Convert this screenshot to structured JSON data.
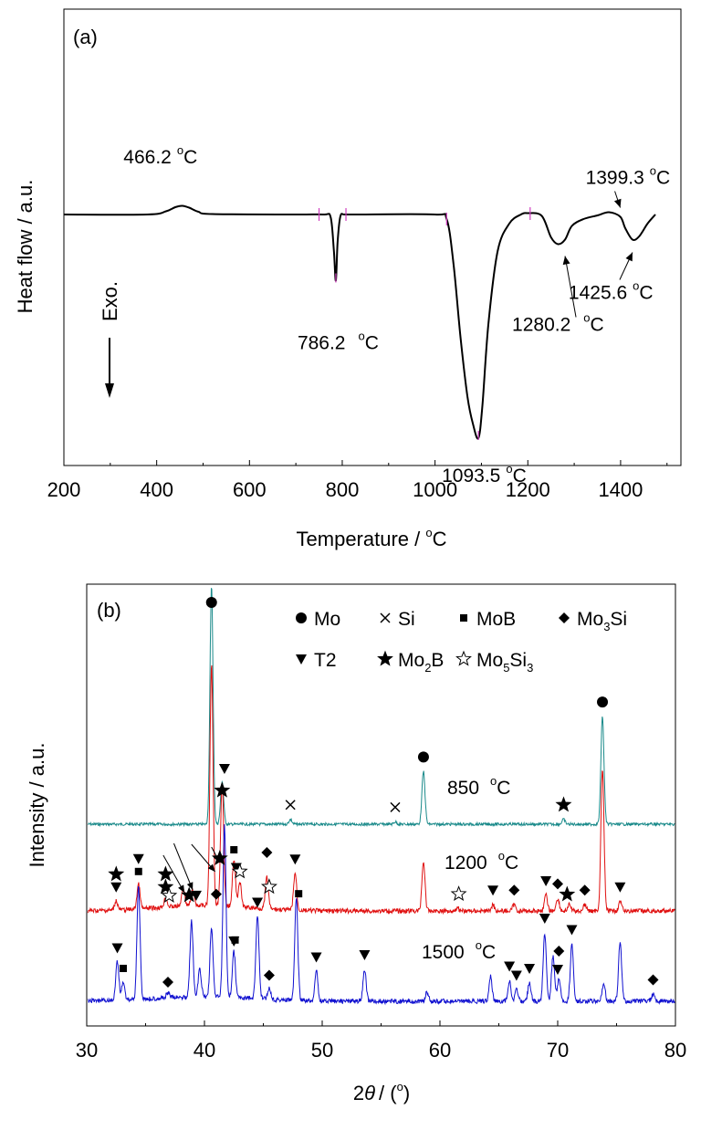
{
  "chart_data": [
    {
      "type": "line",
      "panel_label": "(a)",
      "xlabel": "Temperature / ",
      "xlabel_unit": "C",
      "ylabel": "Heat flow / a.u.",
      "xlim": [
        200,
        1530
      ],
      "ylim": [
        0,
        1
      ],
      "xticks": [
        200,
        400,
        600,
        800,
        1000,
        1200,
        1400
      ],
      "y_ticks_shown": false,
      "exo_label": "Exo.",
      "series": [
        {
          "x": [
            200,
            380,
            420,
            440,
            455,
            470,
            490,
            520,
            700,
            760,
            775,
            782,
            786.2,
            790,
            796,
            805,
            830,
            1000,
            1025,
            1040,
            1055,
            1070,
            1082,
            1093.5,
            1102,
            1115,
            1135,
            1160,
            1185,
            1200,
            1230,
            1250,
            1265,
            1280.2,
            1295,
            1320,
            1350,
            1375,
            1399.3,
            1410,
            1425.6,
            1440,
            1458,
            1475
          ],
          "y": [
            0.55,
            0.55,
            0.557,
            0.566,
            0.569,
            0.565,
            0.556,
            0.551,
            0.55,
            0.55,
            0.544,
            0.47,
            0.405,
            0.49,
            0.546,
            0.55,
            0.55,
            0.55,
            0.54,
            0.44,
            0.28,
            0.15,
            0.09,
            0.06,
            0.13,
            0.31,
            0.47,
            0.53,
            0.55,
            0.553,
            0.547,
            0.5,
            0.485,
            0.495,
            0.525,
            0.54,
            0.548,
            0.555,
            0.545,
            0.52,
            0.495,
            0.502,
            0.53,
            0.55
          ]
        }
      ],
      "annotations": [
        {
          "label": "466.2",
          "unit": "C",
          "x": 466.2
        },
        {
          "label": "786.2",
          "unit": "C",
          "x": 786.2
        },
        {
          "label": "1093.5",
          "unit": "C",
          "x": 1093.5
        },
        {
          "label": "1280.2",
          "unit": "C",
          "x": 1280.2
        },
        {
          "label": "1399.3",
          "unit": "C",
          "x": 1399.3
        },
        {
          "label": "1425.6",
          "unit": "C",
          "x": 1425.6
        }
      ],
      "onset_markers_x": [
        750,
        808,
        1025,
        1205
      ]
    },
    {
      "type": "line",
      "panel_label": "(b)",
      "xlabel": "2",
      "xlabel_theta": "θ",
      "xlabel_unit": "/ (",
      "xlabel_close": ")",
      "ylabel": "Intensity / a.u.",
      "xlim": [
        30,
        80
      ],
      "xticks": [
        30,
        40,
        50,
        60,
        70,
        80
      ],
      "y_ticks_shown": false,
      "legend": [
        {
          "symbol": "circle",
          "label": "Mo"
        },
        {
          "symbol": "cross",
          "label": "Si"
        },
        {
          "symbol": "square",
          "label": "MoB"
        },
        {
          "symbol": "diamond",
          "label": "Mo",
          "sub": "3",
          "tail": "Si"
        },
        {
          "symbol": "triangle-down",
          "label": "T2"
        },
        {
          "symbol": "star",
          "label": "Mo",
          "sub": "2",
          "tail": "B"
        },
        {
          "symbol": "star-open",
          "label": "Mo",
          "sub": "5",
          "tail": "Si",
          "sub2": "3"
        }
      ],
      "legend_position": "top-right",
      "series": [
        {
          "name": "850",
          "unit": "C",
          "color": "#1a8a8a",
          "peaks": [
            [
              40.6,
              1.0
            ],
            [
              41.5,
              0.18
            ],
            [
              47.3,
              0.02
            ],
            [
              56.2,
              0.01
            ],
            [
              58.6,
              0.22
            ],
            [
              70.5,
              0.02
            ],
            [
              73.8,
              0.45
            ]
          ]
        },
        {
          "name": "1200",
          "unit": "C",
          "color": "#e01010",
          "peaks": [
            [
              32.5,
              0.03
            ],
            [
              34.4,
              0.08
            ],
            [
              36.7,
              0.03
            ],
            [
              38.2,
              0.06
            ],
            [
              39.0,
              0.05
            ],
            [
              40.6,
              0.78
            ],
            [
              41.5,
              0.4
            ],
            [
              42.5,
              0.15
            ],
            [
              43.0,
              0.08
            ],
            [
              45.3,
              0.1
            ],
            [
              47.7,
              0.12
            ],
            [
              58.6,
              0.16
            ],
            [
              61.5,
              0.01
            ],
            [
              64.5,
              0.02
            ],
            [
              66.3,
              0.02
            ],
            [
              69.0,
              0.05
            ],
            [
              70.0,
              0.04
            ],
            [
              71.0,
              0.02
            ],
            [
              72.3,
              0.02
            ],
            [
              73.8,
              0.46
            ],
            [
              75.3,
              0.03
            ]
          ]
        },
        {
          "name": "1500",
          "unit": "C",
          "color": "#1010d0",
          "peaks": [
            [
              32.6,
              0.17
            ],
            [
              33.1,
              0.08
            ],
            [
              34.4,
              0.5
            ],
            [
              36.9,
              0.02
            ],
            [
              38.9,
              0.33
            ],
            [
              39.6,
              0.12
            ],
            [
              40.6,
              0.3
            ],
            [
              41.7,
              0.75
            ],
            [
              42.5,
              0.2
            ],
            [
              44.5,
              0.37
            ],
            [
              45.5,
              0.05
            ],
            [
              47.8,
              0.45
            ],
            [
              49.5,
              0.13
            ],
            [
              53.6,
              0.14
            ],
            [
              58.9,
              0.04
            ],
            [
              64.3,
              0.11
            ],
            [
              65.9,
              0.09
            ],
            [
              66.5,
              0.05
            ],
            [
              67.6,
              0.08
            ],
            [
              68.9,
              0.3
            ],
            [
              69.6,
              0.2
            ],
            [
              70.1,
              0.1
            ],
            [
              71.2,
              0.25
            ],
            [
              73.9,
              0.08
            ],
            [
              75.3,
              0.26
            ],
            [
              78.1,
              0.03
            ]
          ]
        }
      ],
      "markers": [
        {
          "series": "850",
          "symbol": "circle",
          "x": [
            40.6,
            58.6,
            73.8
          ]
        },
        {
          "series": "850",
          "symbol": "triangle-down",
          "x": [
            41.7
          ]
        },
        {
          "series": "850",
          "symbol": "star",
          "x": [
            41.5,
            70.5
          ]
        },
        {
          "series": "850",
          "symbol": "cross",
          "x": [
            47.3,
            56.2
          ]
        },
        {
          "series": "1200",
          "symbol": "square",
          "x": [
            34.4,
            42.5,
            48.0
          ]
        },
        {
          "series": "1200",
          "symbol": "triangle-down",
          "x": [
            32.5,
            34.4,
            39.3,
            42.7,
            47.7,
            64.5,
            69.0,
            75.3
          ]
        },
        {
          "series": "1200",
          "symbol": "star",
          "x": [
            32.5,
            36.7,
            36.7,
            38.7,
            41.3,
            70.8
          ]
        },
        {
          "series": "1200",
          "symbol": "star-open",
          "x": [
            37.0,
            43.0,
            45.5,
            61.6
          ]
        },
        {
          "series": "1200",
          "symbol": "diamond",
          "x": [
            41.0,
            45.3,
            66.3,
            70.0,
            72.3
          ]
        },
        {
          "series": "1500",
          "symbol": "triangle-down",
          "x": [
            32.6,
            42.5,
            44.5,
            49.5,
            53.6,
            65.9,
            66.5,
            67.6,
            68.9,
            70.0,
            71.2
          ]
        },
        {
          "series": "1500",
          "symbol": "square",
          "x": [
            33.1,
            42.6
          ]
        },
        {
          "series": "1500",
          "symbol": "diamond",
          "x": [
            36.9,
            45.5,
            70.1,
            78.1
          ]
        }
      ]
    }
  ]
}
